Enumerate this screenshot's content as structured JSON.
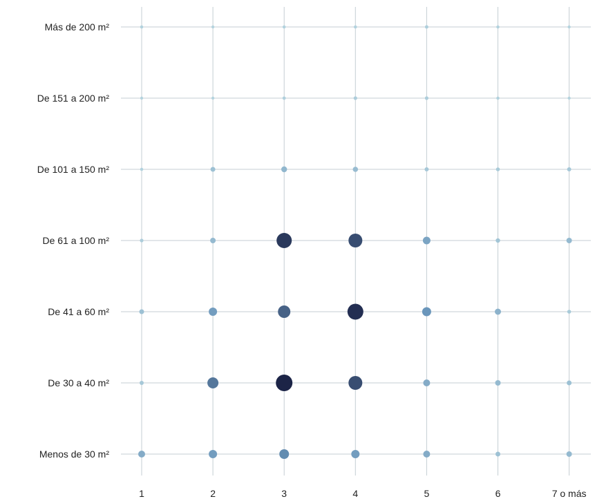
{
  "chart_data": {
    "type": "scatter",
    "title": "",
    "xlabel": "",
    "ylabel": "",
    "grid": true,
    "legend": "none",
    "x_categories": [
      "1",
      "2",
      "3",
      "4",
      "5",
      "6",
      "7 o más"
    ],
    "y_categories": [
      "Menos de 30 m²",
      "De 30 a 40 m²",
      "De 41 a 60 m²",
      "De 61 a 100 m²",
      "De 101 a 150 m²",
      "De 151 a 200 m²",
      "Más de 200 m²"
    ],
    "size_scale": [
      0,
      10
    ],
    "points": [
      {
        "x": "1",
        "y": "Menos de 30 m²",
        "value": 3
      },
      {
        "x": "2",
        "y": "Menos de 30 m²",
        "value": 4
      },
      {
        "x": "3",
        "y": "Menos de 30 m²",
        "value": 5
      },
      {
        "x": "4",
        "y": "Menos de 30 m²",
        "value": 4
      },
      {
        "x": "5",
        "y": "Menos de 30 m²",
        "value": 3
      },
      {
        "x": "6",
        "y": "Menos de 30 m²",
        "value": 1.5
      },
      {
        "x": "7 o más",
        "y": "Menos de 30 m²",
        "value": 2
      },
      {
        "x": "1",
        "y": "De 30 a 40 m²",
        "value": 1
      },
      {
        "x": "2",
        "y": "De 30 a 40 m²",
        "value": 6
      },
      {
        "x": "3",
        "y": "De 30 a 40 m²",
        "value": 10
      },
      {
        "x": "4",
        "y": "De 30 a 40 m²",
        "value": 8
      },
      {
        "x": "5",
        "y": "De 30 a 40 m²",
        "value": 3
      },
      {
        "x": "6",
        "y": "De 30 a 40 m²",
        "value": 2
      },
      {
        "x": "7 o más",
        "y": "De 30 a 40 m²",
        "value": 1.5
      },
      {
        "x": "1",
        "y": "De 41 a 60 m²",
        "value": 1.5
      },
      {
        "x": "2",
        "y": "De 41 a 60 m²",
        "value": 4
      },
      {
        "x": "3",
        "y": "De 41 a 60 m²",
        "value": 7
      },
      {
        "x": "4",
        "y": "De 41 a 60 m²",
        "value": 9.5
      },
      {
        "x": "5",
        "y": "De 41 a 60 m²",
        "value": 4.5
      },
      {
        "x": "6",
        "y": "De 41 a 60 m²",
        "value": 2.5
      },
      {
        "x": "7 o más",
        "y": "De 41 a 60 m²",
        "value": 0.8
      },
      {
        "x": "1",
        "y": "De 61 a 100 m²",
        "value": 0.6
      },
      {
        "x": "2",
        "y": "De 61 a 100 m²",
        "value": 2
      },
      {
        "x": "3",
        "y": "De 61 a 100 m²",
        "value": 9
      },
      {
        "x": "4",
        "y": "De 61 a 100 m²",
        "value": 8
      },
      {
        "x": "5",
        "y": "De 61 a 100 m²",
        "value": 3.5
      },
      {
        "x": "6",
        "y": "De 61 a 100 m²",
        "value": 1.2
      },
      {
        "x": "7 o más",
        "y": "De 61 a 100 m²",
        "value": 2
      },
      {
        "x": "1",
        "y": "De 101 a 150 m²",
        "value": 0.3
      },
      {
        "x": "2",
        "y": "De 101 a 150 m²",
        "value": 1.5
      },
      {
        "x": "3",
        "y": "De 101 a 150 m²",
        "value": 2.2
      },
      {
        "x": "4",
        "y": "De 101 a 150 m²",
        "value": 1.8
      },
      {
        "x": "5",
        "y": "De 101 a 150 m²",
        "value": 1
      },
      {
        "x": "6",
        "y": "De 101 a 150 m²",
        "value": 0.8
      },
      {
        "x": "7 o más",
        "y": "De 101 a 150 m²",
        "value": 1
      },
      {
        "x": "1",
        "y": "De 151 a 200 m²",
        "value": 0.2
      },
      {
        "x": "2",
        "y": "De 151 a 200 m²",
        "value": 0.2
      },
      {
        "x": "3",
        "y": "De 151 a 200 m²",
        "value": 0.4
      },
      {
        "x": "4",
        "y": "De 151 a 200 m²",
        "value": 0.6
      },
      {
        "x": "5",
        "y": "De 151 a 200 m²",
        "value": 0.6
      },
      {
        "x": "6",
        "y": "De 151 a 200 m²",
        "value": 0.3
      },
      {
        "x": "7 o más",
        "y": "De 151 a 200 m²",
        "value": 0.2
      },
      {
        "x": "1",
        "y": "Más de 200 m²",
        "value": 0.3
      },
      {
        "x": "2",
        "y": "Más de 200 m²",
        "value": 0.2
      },
      {
        "x": "3",
        "y": "Más de 200 m²",
        "value": 0.3
      },
      {
        "x": "4",
        "y": "Más de 200 m²",
        "value": 0.3
      },
      {
        "x": "5",
        "y": "Más de 200 m²",
        "value": 0.5
      },
      {
        "x": "6",
        "y": "Más de 200 m²",
        "value": 0.3
      },
      {
        "x": "7 o más",
        "y": "Más de 200 m²",
        "value": 0.2
      }
    ],
    "colors": {
      "low": "#b7d6e0",
      "mid": "#6a96bb",
      "high": "#1c2447",
      "grid": "#c4ced3",
      "text": "#222222"
    }
  }
}
